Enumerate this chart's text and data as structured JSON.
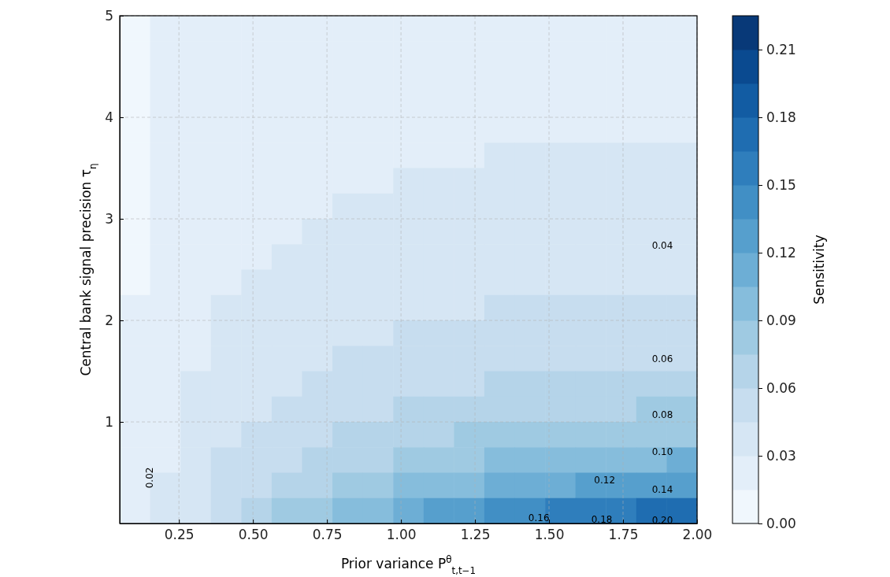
{
  "chart_data": {
    "type": "heatmap",
    "xlabel": "Prior variance P$^{θ}$$_{t,t−1}$",
    "ylabel": "Central bank signal precision τ$_{η}$",
    "clabel": "Sensitivity",
    "cells": [
      [
        0.0075,
        0.0225,
        0.0225,
        0.0225,
        0.0225,
        0.0225,
        0.0225,
        0.0225,
        0.0225,
        0.0225,
        0.0225,
        0.0225,
        0.0225,
        0.0225,
        0.0225,
        0.0225,
        0.0225,
        0.0225,
        0.0225
      ],
      [
        0.0075,
        0.0225,
        0.0225,
        0.0225,
        0.0225,
        0.0225,
        0.0225,
        0.0225,
        0.0225,
        0.0225,
        0.0225,
        0.0225,
        0.0225,
        0.0225,
        0.0225,
        0.0225,
        0.0225,
        0.0225,
        0.0225
      ],
      [
        0.0075,
        0.0225,
        0.0225,
        0.0225,
        0.0225,
        0.0225,
        0.0225,
        0.0225,
        0.0225,
        0.0225,
        0.0225,
        0.0225,
        0.0225,
        0.0225,
        0.0225,
        0.0225,
        0.0225,
        0.0225,
        0.0225
      ],
      [
        0.0075,
        0.0225,
        0.0225,
        0.0225,
        0.0225,
        0.0225,
        0.0225,
        0.0225,
        0.0225,
        0.0225,
        0.0225,
        0.0225,
        0.0225,
        0.0225,
        0.0225,
        0.0225,
        0.0225,
        0.0225,
        0.0225
      ],
      [
        0.0075,
        0.0225,
        0.0225,
        0.0225,
        0.0225,
        0.0225,
        0.0225,
        0.0225,
        0.0225,
        0.0225,
        0.0225,
        0.0225,
        0.0225,
        0.0225,
        0.0225,
        0.0225,
        0.0225,
        0.0225,
        0.0225
      ],
      [
        0.0075,
        0.0225,
        0.0225,
        0.0225,
        0.0225,
        0.0225,
        0.0225,
        0.0225,
        0.0225,
        0.0225,
        0.0225,
        0.0225,
        0.0375,
        0.0375,
        0.0375,
        0.0375,
        0.0375,
        0.0375,
        0.0375
      ],
      [
        0.0075,
        0.0225,
        0.0225,
        0.0225,
        0.0225,
        0.0225,
        0.0225,
        0.0225,
        0.0225,
        0.0375,
        0.0375,
        0.0375,
        0.0375,
        0.0375,
        0.0375,
        0.0375,
        0.0375,
        0.0375,
        0.0375
      ],
      [
        0.0075,
        0.0225,
        0.0225,
        0.0225,
        0.0225,
        0.0225,
        0.0225,
        0.0375,
        0.0375,
        0.0375,
        0.0375,
        0.0375,
        0.0375,
        0.0375,
        0.0375,
        0.0375,
        0.0375,
        0.0375,
        0.0375
      ],
      [
        0.0075,
        0.0225,
        0.0225,
        0.0225,
        0.0225,
        0.0225,
        0.0375,
        0.0375,
        0.0375,
        0.0375,
        0.0375,
        0.0375,
        0.0375,
        0.0375,
        0.0375,
        0.0375,
        0.0375,
        0.0375,
        0.0375
      ],
      [
        0.0075,
        0.0225,
        0.0225,
        0.0225,
        0.0225,
        0.0375,
        0.0375,
        0.0375,
        0.0375,
        0.0375,
        0.0375,
        0.0375,
        0.0375,
        0.0375,
        0.0375,
        0.0375,
        0.0375,
        0.0375,
        0.0375
      ],
      [
        0.0075,
        0.0225,
        0.0225,
        0.0225,
        0.0375,
        0.0375,
        0.0375,
        0.0375,
        0.0375,
        0.0375,
        0.0375,
        0.0375,
        0.0375,
        0.0375,
        0.0375,
        0.0375,
        0.0375,
        0.0375,
        0.0375
      ],
      [
        0.0225,
        0.0225,
        0.0225,
        0.0375,
        0.0375,
        0.0375,
        0.0375,
        0.0375,
        0.0375,
        0.0375,
        0.0375,
        0.0375,
        0.0525,
        0.0525,
        0.0525,
        0.0525,
        0.0525,
        0.0525,
        0.0525
      ],
      [
        0.0225,
        0.0225,
        0.0225,
        0.0375,
        0.0375,
        0.0375,
        0.0375,
        0.0375,
        0.0375,
        0.0525,
        0.0525,
        0.0525,
        0.0525,
        0.0525,
        0.0525,
        0.0525,
        0.0525,
        0.0525,
        0.0525
      ],
      [
        0.0225,
        0.0225,
        0.0225,
        0.0375,
        0.0375,
        0.0375,
        0.0375,
        0.0525,
        0.0525,
        0.0525,
        0.0525,
        0.0525,
        0.0525,
        0.0525,
        0.0525,
        0.0525,
        0.0525,
        0.0525,
        0.0525
      ],
      [
        0.0225,
        0.0225,
        0.0375,
        0.0375,
        0.0375,
        0.0375,
        0.0525,
        0.0525,
        0.0525,
        0.0525,
        0.0525,
        0.0525,
        0.0675,
        0.0675,
        0.0675,
        0.0675,
        0.0675,
        0.0675,
        0.0675
      ],
      [
        0.0225,
        0.0225,
        0.0375,
        0.0375,
        0.0375,
        0.0525,
        0.0525,
        0.0525,
        0.0525,
        0.0675,
        0.0675,
        0.0675,
        0.0675,
        0.0675,
        0.0675,
        0.0675,
        0.0675,
        0.0825,
        0.0825
      ],
      [
        0.0225,
        0.0225,
        0.0375,
        0.0375,
        0.0525,
        0.0525,
        0.0525,
        0.0675,
        0.0675,
        0.0675,
        0.0675,
        0.0825,
        0.0825,
        0.0825,
        0.0825,
        0.0825,
        0.0825,
        0.0825,
        0.0825
      ],
      [
        0.0225,
        0.0225,
        0.0375,
        0.0525,
        0.0525,
        0.0525,
        0.0675,
        0.0675,
        0.0675,
        0.0825,
        0.0825,
        0.0825,
        0.0975,
        0.0975,
        0.0975,
        0.0975,
        0.0975,
        0.0975,
        0.1125
      ],
      [
        0.0225,
        0.0375,
        0.0375,
        0.0525,
        0.0525,
        0.0675,
        0.0675,
        0.0825,
        0.0825,
        0.0975,
        0.0975,
        0.0975,
        0.1125,
        0.1125,
        0.1125,
        0.1275,
        0.1275,
        0.1275,
        0.1275
      ],
      [
        0.0225,
        0.0375,
        0.0375,
        0.0525,
        0.0675,
        0.0825,
        0.0825,
        0.0975,
        0.0975,
        0.1125,
        0.1275,
        0.1275,
        0.1425,
        0.1425,
        0.1575,
        0.1575,
        0.1575,
        0.1725,
        0.1725
      ]
    ],
    "xlim": [
      0.05,
      2.0
    ],
    "ylim": [
      0,
      5
    ],
    "xticks": [
      0.25,
      {
        "value": 0.5,
        "label": "0.50"
      },
      0.75,
      {
        "value": 1,
        "label": "1.00"
      },
      1.25,
      {
        "value": 1.5,
        "label": "1.50"
      },
      1.75,
      {
        "value": 2,
        "label": "2.00"
      }
    ],
    "yticks": [
      1,
      2,
      3,
      4,
      5
    ],
    "clim": [
      0,
      0.225
    ],
    "cticks": [
      {
        "value": 0,
        "label": "0.00"
      },
      0.03,
      0.06,
      0.09,
      0.12,
      0.15,
      0.18,
      0.21
    ],
    "grid": true,
    "annotations": [
      "0.02",
      "0.04",
      "0.06",
      "0.08",
      "0.10",
      "0.12",
      "0.14",
      "0.16",
      "0.18",
      "0.20"
    ]
  }
}
